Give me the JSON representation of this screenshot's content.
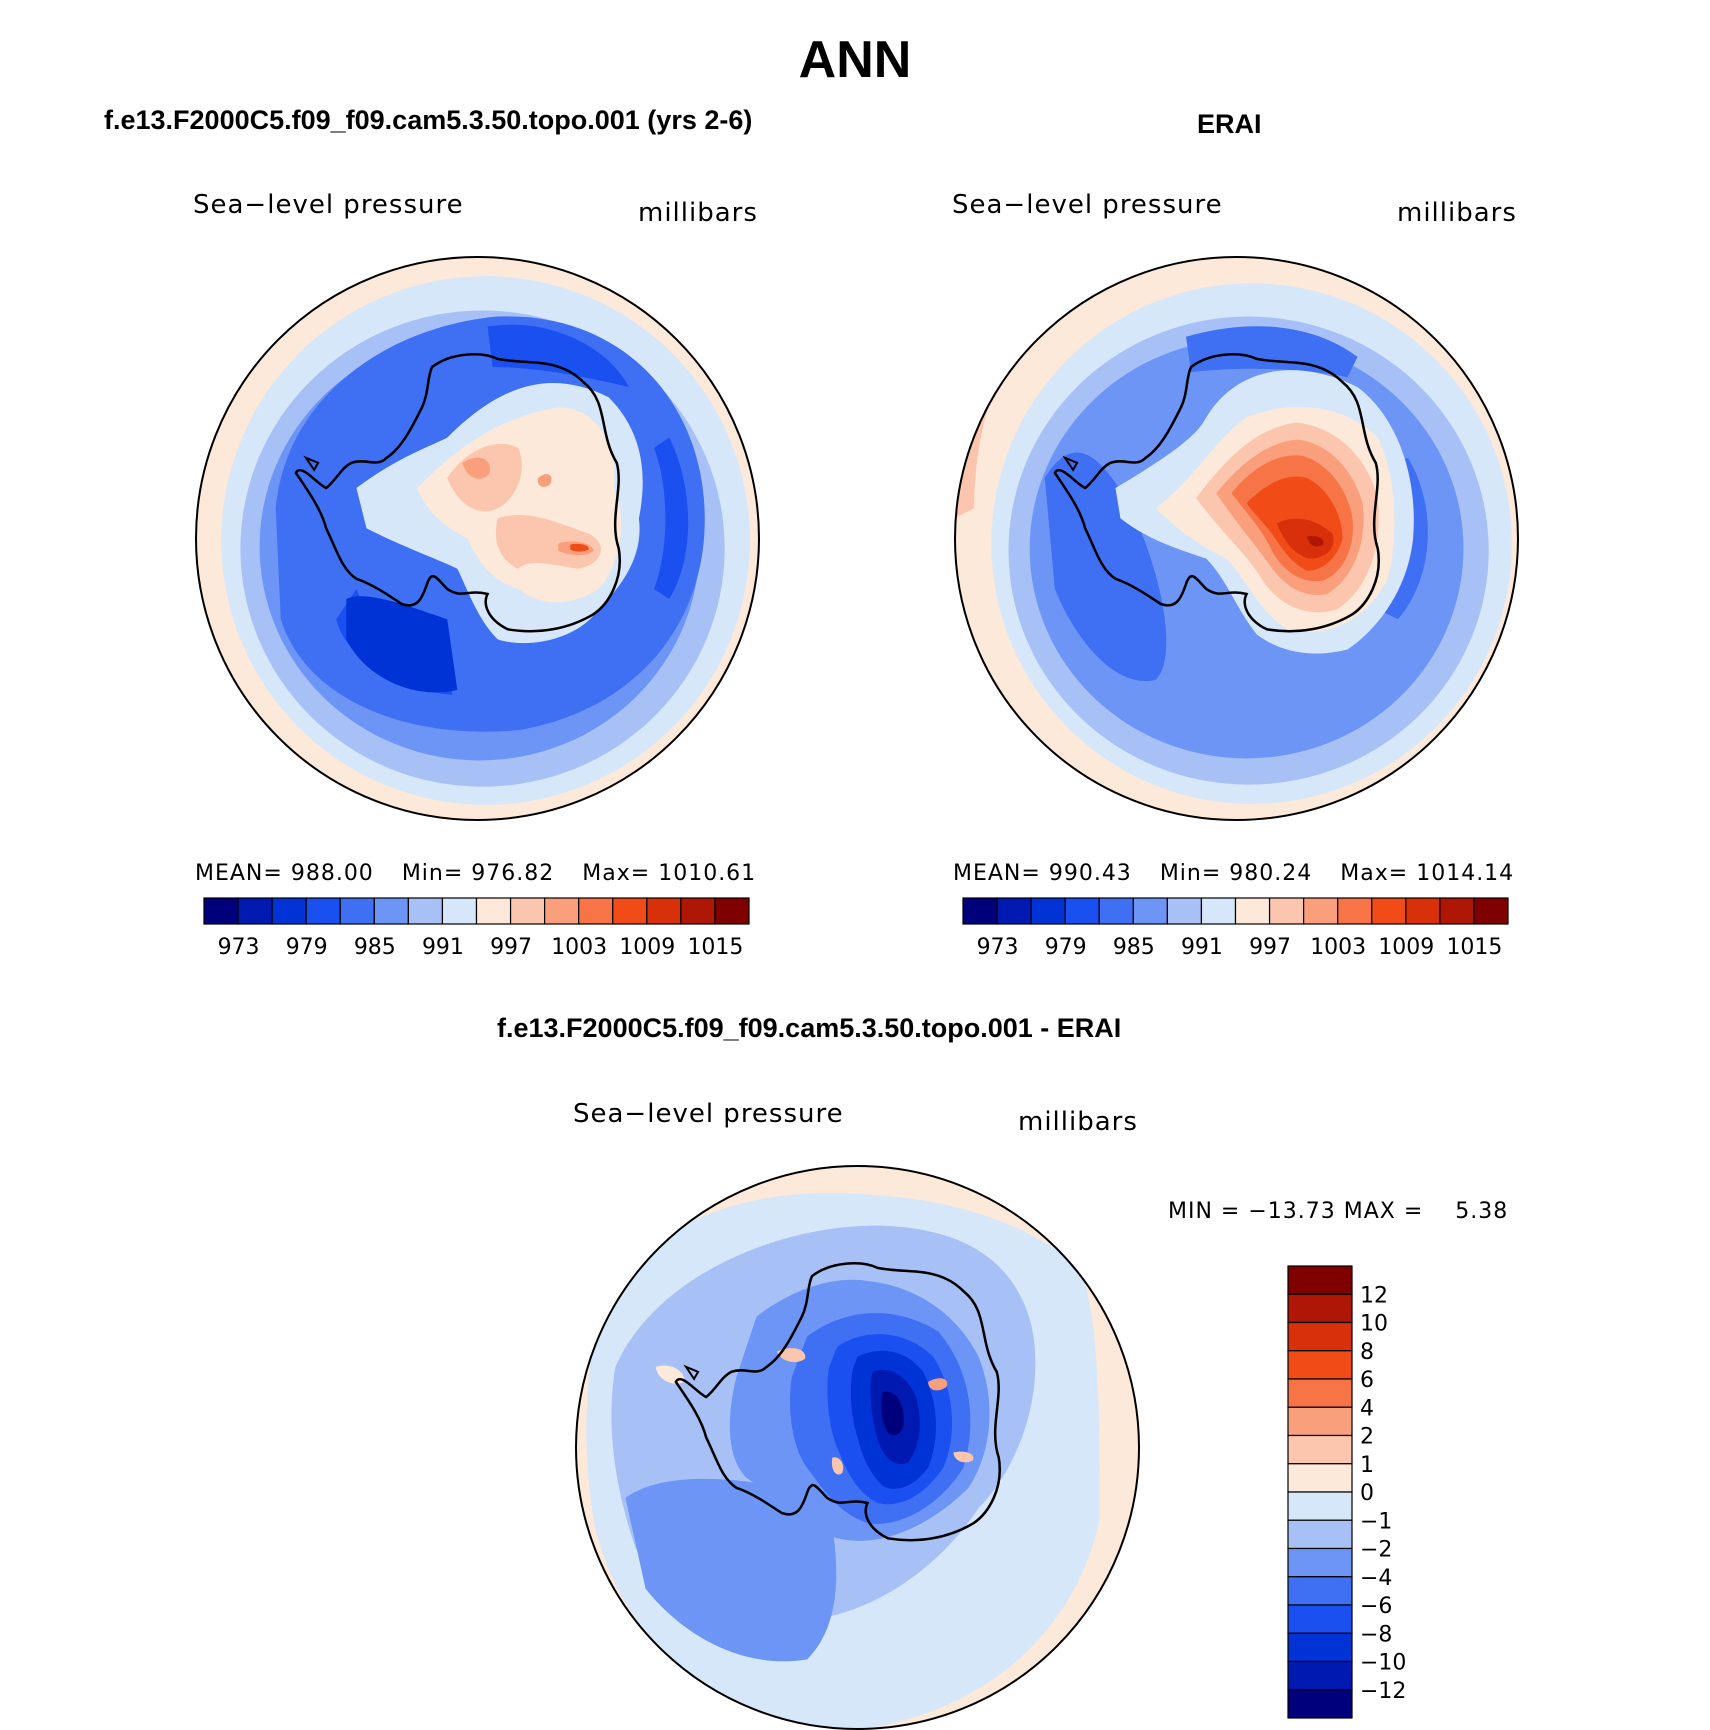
{
  "page": {
    "title": "ANN"
  },
  "panels": [
    {
      "title": "f.e13.F2000C5.f09_f09.cam5.3.50.topo.001 (yrs 2-6)",
      "variable": "Sea−level pressure",
      "units": "millibars",
      "mean_label": "MEAN=",
      "mean": "988.00",
      "min_label": "Min=",
      "min": "976.82",
      "max_label": "Max=",
      "max": "1010.61"
    },
    {
      "title": "ERAI",
      "variable": "Sea−level pressure",
      "units": "millibars",
      "mean_label": "MEAN=",
      "mean": "990.43",
      "min_label": "Min=",
      "min": "980.24",
      "max_label": "Max=",
      "max": "1014.14"
    }
  ],
  "diff_panel": {
    "title": "f.e13.F2000C5.f09_f09.cam5.3.50.topo.001 - ERAI",
    "variable": "Sea−level pressure",
    "units": "millibars",
    "minmax_text": "MIN = −13.73 MAX =    5.38"
  },
  "chart_data": [
    {
      "type": "heatmap",
      "projection": "south-polar-stereographic",
      "title": "f.e13.F2000C5.f09_f09.cam5.3.50.topo.001 (yrs 2-6)",
      "field": "Sea-level pressure",
      "units": "millibars",
      "mean": 988.0,
      "min": 976.82,
      "max": 1010.61,
      "colorbar": {
        "orientation": "horizontal",
        "tick_labels": [
          "973",
          "979",
          "985",
          "991",
          "997",
          "1003",
          "1009",
          "1015"
        ],
        "colors": [
          "#00007d",
          "#0019b0",
          "#0033d6",
          "#1a4ff0",
          "#3f6ff2",
          "#6d95f5",
          "#a7c1f7",
          "#d6e7fa",
          "#fde9d9",
          "#fcc5ad",
          "#fa9f7c",
          "#f77447",
          "#f14c18",
          "#d8300a",
          "#b01606",
          "#800000"
        ]
      }
    },
    {
      "type": "heatmap",
      "projection": "south-polar-stereographic",
      "title": "ERAI",
      "field": "Sea-level pressure",
      "units": "millibars",
      "mean": 990.43,
      "min": 980.24,
      "max": 1014.14,
      "colorbar": {
        "orientation": "horizontal",
        "tick_labels": [
          "973",
          "979",
          "985",
          "991",
          "997",
          "1003",
          "1009",
          "1015"
        ],
        "colors": [
          "#00007d",
          "#0019b0",
          "#0033d6",
          "#1a4ff0",
          "#3f6ff2",
          "#6d95f5",
          "#a7c1f7",
          "#d6e7fa",
          "#fde9d9",
          "#fcc5ad",
          "#fa9f7c",
          "#f77447",
          "#f14c18",
          "#d8300a",
          "#b01606",
          "#800000"
        ]
      }
    },
    {
      "type": "heatmap",
      "projection": "south-polar-stereographic",
      "title": "f.e13.F2000C5.f09_f09.cam5.3.50.topo.001 - ERAI",
      "field": "Sea-level pressure",
      "units": "millibars",
      "min": -13.73,
      "max": 5.38,
      "colorbar": {
        "orientation": "vertical",
        "tick_labels": [
          "12",
          "10",
          "8",
          "6",
          "4",
          "2",
          "1",
          "0",
          "−1",
          "−2",
          "−4",
          "−6",
          "−8",
          "−10",
          "−12"
        ],
        "colors": [
          "#800000",
          "#b01606",
          "#d8300a",
          "#f14c18",
          "#f77447",
          "#fa9f7c",
          "#fcc5ad",
          "#fde9d9",
          "#d6e7fa",
          "#a7c1f7",
          "#6d95f5",
          "#3f6ff2",
          "#1a4ff0",
          "#0033d6",
          "#0019b0",
          "#00007d"
        ]
      }
    }
  ]
}
